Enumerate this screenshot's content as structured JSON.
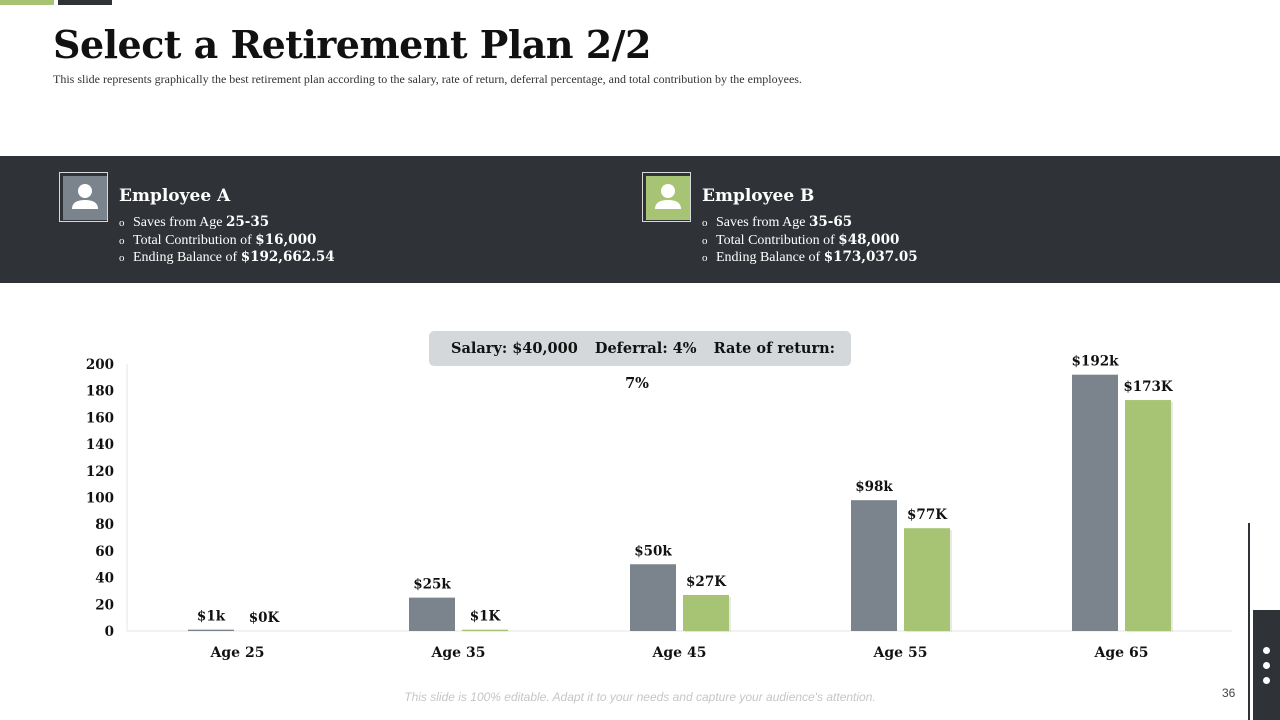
{
  "slide": {
    "title": "Select a Retirement Plan 2/2",
    "subtitle": "This slide represents  graphically  the best retirement  plan according to the salary, rate of return,  deferral  percentage,  and total contribution  by the employees.",
    "footer_note": "This slide is 100% editable. Adapt it to your needs and capture your audience's attention.",
    "page_number": "36"
  },
  "employees": [
    {
      "name": "Employee A",
      "avatar_icon": "user-icon",
      "avatar_color": "#7b848c",
      "saves_label": "Saves from Age ",
      "saves_value": "25-35",
      "contribution_label": "Total Contribution of ",
      "contribution_value": "$16,000",
      "balance_label": "Ending Balance of ",
      "balance_value": "$192,662.54"
    },
    {
      "name": "Employee B",
      "avatar_icon": "user-icon",
      "avatar_color": "#a7c474",
      "saves_label": "Saves from Age ",
      "saves_value": "35-65",
      "contribution_label": "Total Contribution of ",
      "contribution_value": "$48,000",
      "balance_label": "Ending Balance of ",
      "balance_value": "$173,037.05"
    }
  ],
  "parameters": {
    "salary": "Salary: $40,000",
    "deferral": "Deferral:  4%",
    "rate": "Rate of return: 7%"
  },
  "colors": {
    "employee_a": "#7b848c",
    "employee_b": "#a7c474",
    "dark": "#2f3337",
    "accent": "#a7c474"
  },
  "chart_data": {
    "type": "bar",
    "categories": [
      "Age 25",
      "Age 35",
      "Age 45",
      "Age 55",
      "Age 65"
    ],
    "series": [
      {
        "key": "employee_a",
        "values": [
          1,
          25,
          50,
          98,
          192
        ],
        "labels": [
          "$1k",
          "$25k",
          "$50k",
          "$98k",
          "$192k"
        ]
      },
      {
        "key": "employee_b",
        "values": [
          0,
          1,
          27,
          77,
          173
        ],
        "labels": [
          "$0K",
          "$1K",
          "$27K",
          "$77K",
          "$173K"
        ]
      }
    ],
    "ylim": [
      0,
      200
    ],
    "yticks": [
      0,
      20,
      40,
      60,
      80,
      100,
      120,
      140,
      160,
      180,
      200
    ],
    "grid": false,
    "legend": "none"
  }
}
